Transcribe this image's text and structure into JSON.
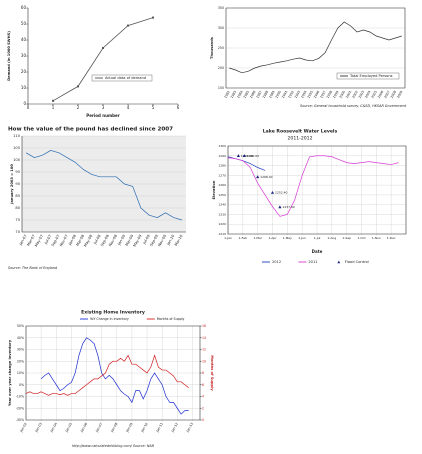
{
  "chart_data": [
    {
      "type": "line",
      "xlabel": "Period number",
      "ylabel": "Demand (in 1000 SWHS)",
      "x": [
        1,
        2,
        3,
        4,
        5
      ],
      "xlim": [
        0,
        6
      ],
      "xticks": [
        0,
        1,
        2,
        3,
        4,
        5,
        6
      ],
      "ylim": [
        0,
        60
      ],
      "yticks": [
        0,
        10,
        20,
        30,
        40,
        50,
        60
      ],
      "grid": false,
      "markers": true,
      "series": [
        {
          "name": "Actual data of demand",
          "color": "#555555",
          "values": [
            2,
            11,
            35,
            49,
            54
          ]
        }
      ]
    },
    {
      "type": "line",
      "ylabel": "Thousands",
      "source": "Source: General household survey, C&SD, HKSAR Government",
      "categories": [
        "1982",
        "1983",
        "1984",
        "1985",
        "1986",
        "1987",
        "1988",
        "1989",
        "1990",
        "1991",
        "1992",
        "1993",
        "1994",
        "1995",
        "1996",
        "1997",
        "1998",
        "1999",
        "2000",
        "2001",
        "2002",
        "2003",
        "2004",
        "2005",
        "2006",
        "2007",
        "2008",
        "2009"
      ],
      "ylim": [
        150,
        350
      ],
      "yticks": [
        150,
        200,
        250,
        300,
        350
      ],
      "grid": true,
      "markers": false,
      "series": [
        {
          "name": "Total Employed Persons",
          "color": "#333333",
          "values": [
            200,
            195,
            188,
            192,
            200,
            205,
            208,
            212,
            215,
            218,
            222,
            225,
            220,
            218,
            224,
            238,
            270,
            300,
            315,
            305,
            290,
            295,
            290,
            280,
            275,
            270,
            275,
            280
          ]
        }
      ]
    },
    {
      "type": "line",
      "title": "How the value of the pound has declined since 2007",
      "ylabel": "January 2003 = 100",
      "source": "Source: The Bank of England",
      "categories": [
        "Jan-07",
        "Mar-07",
        "May-07",
        "Jul-07",
        "Sep-07",
        "Nov-07",
        "Jan-08",
        "Mar-08",
        "May-08",
        "Jul-08",
        "Sep-08",
        "Nov-08",
        "Jan-09",
        "Mar-09",
        "May-09",
        "Jul-09",
        "Sep-09",
        "Nov-09",
        "Jan-10",
        "Mar-10"
      ],
      "ylim": [
        70,
        110
      ],
      "yticks": [
        70,
        75,
        80,
        85,
        90,
        95,
        100,
        105,
        110
      ],
      "grid": true,
      "markers": false,
      "series": [
        {
          "color": "#2b6cb0",
          "values": [
            103,
            101,
            102,
            104,
            103,
            101,
            99,
            96,
            94,
            93,
            93,
            93,
            90,
            89,
            80,
            77,
            76,
            78,
            76,
            75
          ]
        }
      ]
    },
    {
      "type": "line",
      "title": "Lake Roosevelt Water Levels",
      "subtitle": "2011-2012",
      "xlabel": "Date",
      "ylabel": "Elevation",
      "x": [
        0,
        0.5,
        1,
        1.5,
        2,
        2.5,
        3,
        3.5,
        4,
        4.5,
        5,
        5.5,
        6,
        6.5,
        7,
        7.5,
        8,
        8.5,
        9,
        9.5,
        10,
        10.5,
        11,
        11.5
      ],
      "xlim": [
        0,
        12
      ],
      "xticks": [
        {
          "value": 0,
          "label": "1-Jan"
        },
        {
          "value": 1,
          "label": "1-Feb"
        },
        {
          "value": 2,
          "label": "1-Mar"
        },
        {
          "value": 3,
          "label": "1-Apr"
        },
        {
          "value": 4,
          "label": "1-May"
        },
        {
          "value": 5,
          "label": "1-Jun"
        },
        {
          "value": 6,
          "label": "1-Jul"
        },
        {
          "value": 7,
          "label": "1-Aug"
        },
        {
          "value": 8,
          "label": "1-Sep"
        },
        {
          "value": 9,
          "label": "1-Oct"
        },
        {
          "value": 10,
          "label": "1-Nov"
        },
        {
          "value": 11,
          "label": "1-Dec"
        }
      ],
      "ylim": [
        1210,
        1300
      ],
      "yticks": [
        1210,
        1220,
        1230,
        1240,
        1250,
        1260,
        1270,
        1280,
        1290,
        1300
      ],
      "grid": true,
      "markers": false,
      "series": [
        {
          "name": "2012",
          "color": "#1f3fbf",
          "values": [
            1289,
            1287,
            1285,
            1282,
            1278,
            1275,
            null,
            null,
            null,
            null,
            null,
            null,
            null,
            null,
            null,
            null,
            null,
            null,
            null,
            null,
            null,
            null,
            null,
            null
          ]
        },
        {
          "name": "2011",
          "color": "#d63ad6",
          "values": [
            1288,
            1287,
            1285,
            1278,
            1262,
            1250,
            1238,
            1228,
            1230,
            1245,
            1270,
            1289,
            1290,
            1290,
            1289,
            1286,
            1283,
            1282,
            1283,
            1284,
            1283,
            1282,
            1281,
            1283
          ]
        },
        {
          "name": "Flood Control",
          "color": "#1a237e",
          "x": [
            0.7,
            1.1,
            2.0,
            3.0,
            3.5
          ],
          "values": [
            1290,
            1290,
            1268.4,
            1252.4,
            1237.6
          ],
          "value_labels": [
            "1290.00",
            "1290.00",
            "1268.40",
            "1252.40",
            "1237.60"
          ],
          "marker": "triangle",
          "line": false
        }
      ]
    },
    {
      "type": "line",
      "title": "Existing Home Inventory",
      "ylabel": "Year over year change Inventory",
      "y2label": "Months of Supply",
      "source": "http://www.calculatedriskblog.com/   Source: NAR",
      "x": [
        2002,
        2002.25,
        2002.5,
        2002.75,
        2003,
        2003.25,
        2003.5,
        2003.75,
        2004,
        2004.25,
        2004.5,
        2004.75,
        2005,
        2005.25,
        2005.5,
        2005.75,
        2006,
        2006.25,
        2006.5,
        2006.75,
        2007,
        2007.25,
        2007.5,
        2007.75,
        2008,
        2008.25,
        2008.5,
        2008.75,
        2009,
        2009.25,
        2009.5,
        2009.75,
        2010,
        2010.25,
        2010.5,
        2010.75,
        2011,
        2011.25,
        2011.5,
        2011.75,
        2012,
        2012.25,
        2012.5,
        2012.75
      ],
      "xlim": [
        2002,
        2013.5
      ],
      "xticks": [
        {
          "value": 2002,
          "label": "Jan-02"
        },
        {
          "value": 2003,
          "label": "Jan-03"
        },
        {
          "value": 2004,
          "label": "Jan-04"
        },
        {
          "value": 2005,
          "label": "Jan-05"
        },
        {
          "value": 2006,
          "label": "Jan-06"
        },
        {
          "value": 2007,
          "label": "Jan-07"
        },
        {
          "value": 2008,
          "label": "Jan-08"
        },
        {
          "value": 2009,
          "label": "Jan-09"
        },
        {
          "value": 2010,
          "label": "Jan-10"
        },
        {
          "value": 2011,
          "label": "Jan-11"
        },
        {
          "value": 2012,
          "label": "Jan-12"
        },
        {
          "value": 2013,
          "label": "Jan-13"
        }
      ],
      "ylim": [
        -30,
        50
      ],
      "yticks": [
        {
          "value": -30,
          "label": "-30%"
        },
        {
          "value": -20,
          "label": "-20%"
        },
        {
          "value": -10,
          "label": "-10%"
        },
        {
          "value": 0,
          "label": "0%"
        },
        {
          "value": 10,
          "label": "10%"
        },
        {
          "value": 20,
          "label": "20%"
        },
        {
          "value": 30,
          "label": "30%"
        },
        {
          "value": 40,
          "label": "40%"
        },
        {
          "value": 50,
          "label": "50%"
        }
      ],
      "y2lim": [
        0,
        16
      ],
      "y2ticks": [
        0,
        2,
        4,
        6,
        8,
        10,
        12,
        14,
        16
      ],
      "grid": true,
      "markers": false,
      "series": [
        {
          "name": "YoY Change in Inventory",
          "color": "#1f2fd0",
          "values": [
            null,
            null,
            null,
            null,
            5,
            8,
            10,
            5,
            0,
            -5,
            -3,
            0,
            2,
            10,
            25,
            35,
            40,
            38,
            35,
            25,
            10,
            5,
            8,
            5,
            0,
            -5,
            -8,
            -10,
            -15,
            -5,
            -5,
            -12,
            -5,
            5,
            10,
            5,
            0,
            -10,
            -15,
            -15,
            -20,
            -25,
            -22,
            -22
          ]
        },
        {
          "name": "Months of Supply",
          "color": "#d02020",
          "axis": "y2",
          "values": [
            4.5,
            4.8,
            4.5,
            4.5,
            4.8,
            4.5,
            4.2,
            4.5,
            4.5,
            4.3,
            4.5,
            4.2,
            4.5,
            4.5,
            5,
            5.5,
            6,
            6.5,
            7,
            7,
            7.5,
            8,
            9.5,
            10,
            10,
            10.5,
            10,
            11,
            9.5,
            9.5,
            9,
            8.5,
            8,
            9,
            11,
            9,
            8.5,
            8.5,
            8,
            7.5,
            6.5,
            6.5,
            6,
            5.5
          ]
        }
      ]
    }
  ]
}
